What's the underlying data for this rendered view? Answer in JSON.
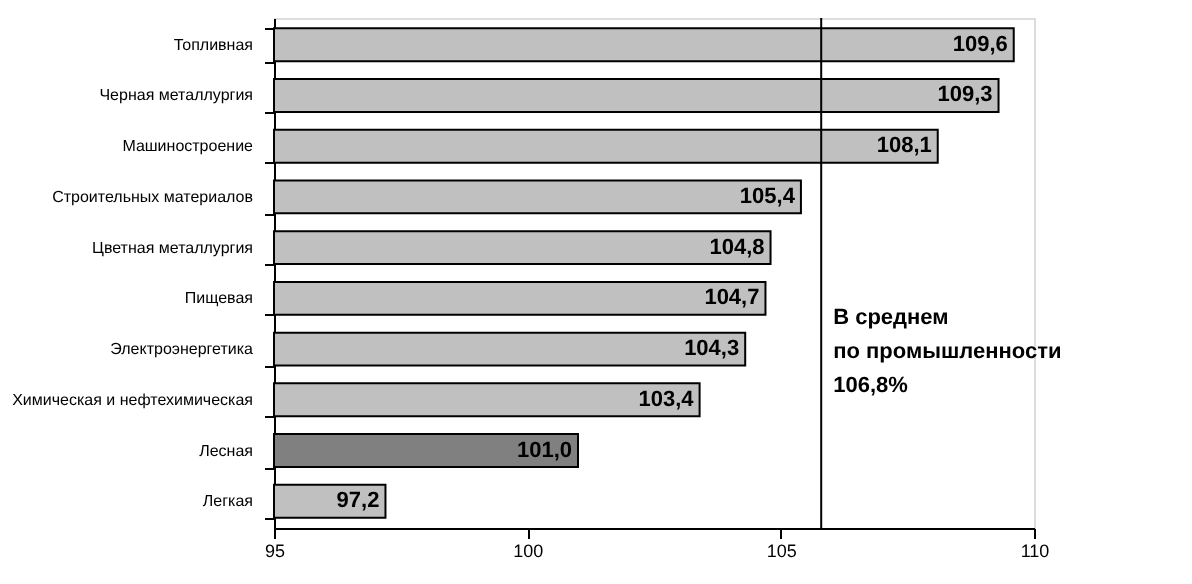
{
  "chart_data": {
    "type": "bar",
    "orientation": "horizontal",
    "categories": [
      "Топливная",
      "Черная металлургия",
      "Машиностроение",
      "Строительных материалов",
      "Цветная металлургия",
      "Пищевая",
      "Электроэнергетика",
      "Химическая и нефтехимическая",
      "Лесная",
      "Легкая"
    ],
    "values": [
      109.6,
      109.3,
      108.1,
      105.4,
      104.8,
      104.7,
      104.3,
      103.4,
      101.0,
      97.2
    ],
    "colors": [
      "#c0c0c0",
      "#c0c0c0",
      "#c0c0c0",
      "#c0c0c0",
      "#c0c0c0",
      "#c0c0c0",
      "#c0c0c0",
      "#c0c0c0",
      "#808080",
      "#c0c0c0"
    ],
    "value_labels": [
      "109,6",
      "109,3",
      "108,1",
      "105,4",
      "104,8",
      "104,7",
      "104,3",
      "103,4",
      "101,0",
      "97,2"
    ],
    "xlim": [
      95,
      110
    ],
    "xticks": [
      95,
      100,
      105,
      110
    ],
    "grid": false,
    "ref_lines": [
      {
        "axis": "x",
        "value": 105.8,
        "label": "В среднем\nпо промышленности\n106,8%",
        "color": "#000000"
      }
    ]
  }
}
